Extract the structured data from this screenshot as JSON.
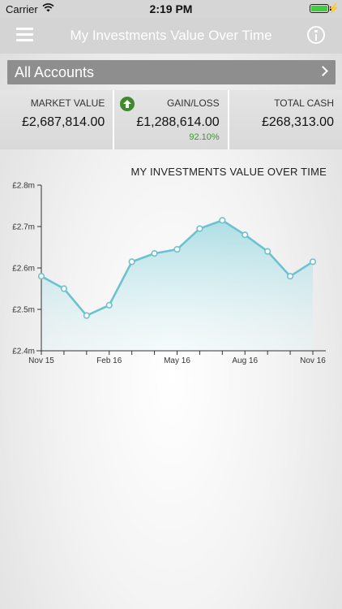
{
  "status": {
    "carrier": "Carrier",
    "time": "2:19 PM"
  },
  "nav": {
    "title": "My Investments Value Over Time",
    "menu_icon": "hamburger-icon",
    "info_icon": "info-icon"
  },
  "accounts": {
    "label": "All Accounts"
  },
  "summary": {
    "market_value_label": "MARKET VALUE",
    "market_value": "£2,687,814.00",
    "gain_loss_label": "GAIN/LOSS",
    "gain_loss": "£1,288,614.00",
    "gain_loss_pct": "92.10%",
    "total_cash_label": "TOTAL CASH",
    "total_cash": "£268,313.00"
  },
  "colors": {
    "line": "#6dc2cf",
    "area_top": "#a9dde4",
    "positive": "#3c9a2f"
  },
  "chart_data": {
    "type": "area",
    "title": "MY INVESTMENTS VALUE OVER TIME",
    "x_tick_labels": [
      "Nov 15",
      "Feb 16",
      "May 16",
      "Aug 16",
      "Nov 16"
    ],
    "y_tick_labels": [
      "£2.4m",
      "£2.5m",
      "£2.6m",
      "£2.7m",
      "£2.8m"
    ],
    "ylim": [
      2.4,
      2.8
    ],
    "x": [
      "Nov 15",
      "Dec 15",
      "Jan 16",
      "Feb 16",
      "Mar 16",
      "Apr 16",
      "May 16",
      "Jun 16",
      "Jul 16",
      "Aug 16",
      "Sep 16",
      "Oct 16",
      "Nov 16"
    ],
    "values": [
      2.58,
      2.55,
      2.485,
      2.51,
      2.615,
      2.635,
      2.645,
      2.695,
      2.715,
      2.68,
      2.64,
      2.58,
      2.615
    ],
    "grid": false
  }
}
